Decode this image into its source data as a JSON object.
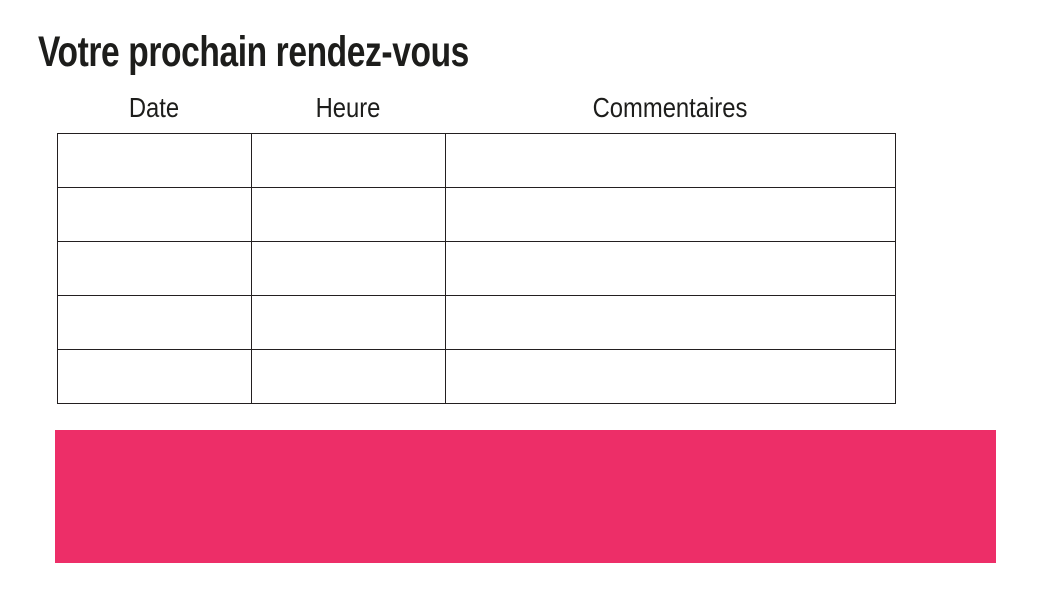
{
  "page": {
    "title": "Votre prochain rendez-vous"
  },
  "table": {
    "columns": [
      {
        "label": "Date"
      },
      {
        "label": "Heure"
      },
      {
        "label": "Commentaires"
      }
    ],
    "rows": [
      [
        "",
        "",
        ""
      ],
      [
        "",
        "",
        ""
      ],
      [
        "",
        "",
        ""
      ],
      [
        "",
        "",
        ""
      ],
      [
        "",
        "",
        ""
      ]
    ]
  },
  "footer_bar": {
    "text": ""
  },
  "colors": {
    "accent_pink": "#ed2e68",
    "table_border": "#231f20",
    "text": "#1d1d1b",
    "background": "#ffffff"
  }
}
